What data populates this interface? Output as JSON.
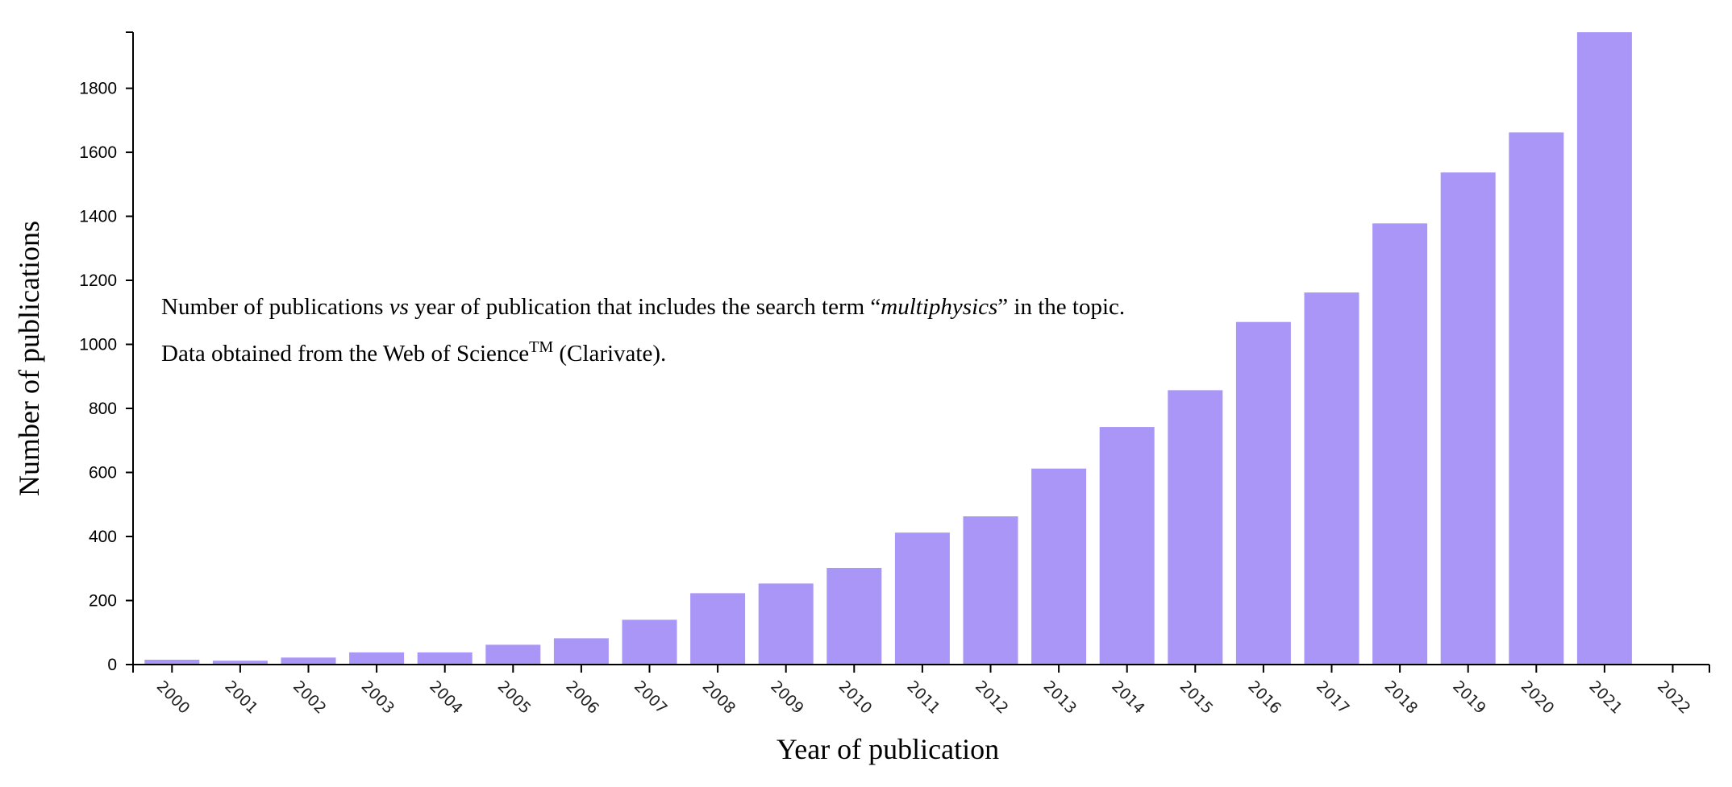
{
  "chart_data": {
    "type": "bar",
    "categories": [
      "2000",
      "2001",
      "2002",
      "2003",
      "2004",
      "2005",
      "2006",
      "2007",
      "2008",
      "2009",
      "2010",
      "2011",
      "2012",
      "2013",
      "2014",
      "2015",
      "2016",
      "2017",
      "2018",
      "2019",
      "2020",
      "2021",
      "2022"
    ],
    "values": [
      15,
      12,
      22,
      38,
      38,
      62,
      82,
      140,
      223,
      253,
      302,
      412,
      463,
      612,
      742,
      857,
      1070,
      1162,
      1378,
      1537,
      1662,
      1975,
      0
    ],
    "xlabel": "Year of publication",
    "ylabel": "Number of publications",
    "ylim": [
      0,
      1975
    ],
    "yticks": [
      0,
      200,
      400,
      600,
      800,
      1000,
      1200,
      1400,
      1600,
      1800
    ],
    "bar_color": "#aa96f6",
    "grid": false,
    "annotation": {
      "line1_pre": "Number of publications ",
      "line1_vs": "vs",
      "line1_mid": " year of publication that includes the search term “",
      "line1_term": "multiphysics",
      "line1_post": "” in the topic.",
      "line2_pre": "Data obtained from the Web of Science",
      "line2_tm": "TM",
      "line2_post": " (Clarivate)."
    }
  }
}
